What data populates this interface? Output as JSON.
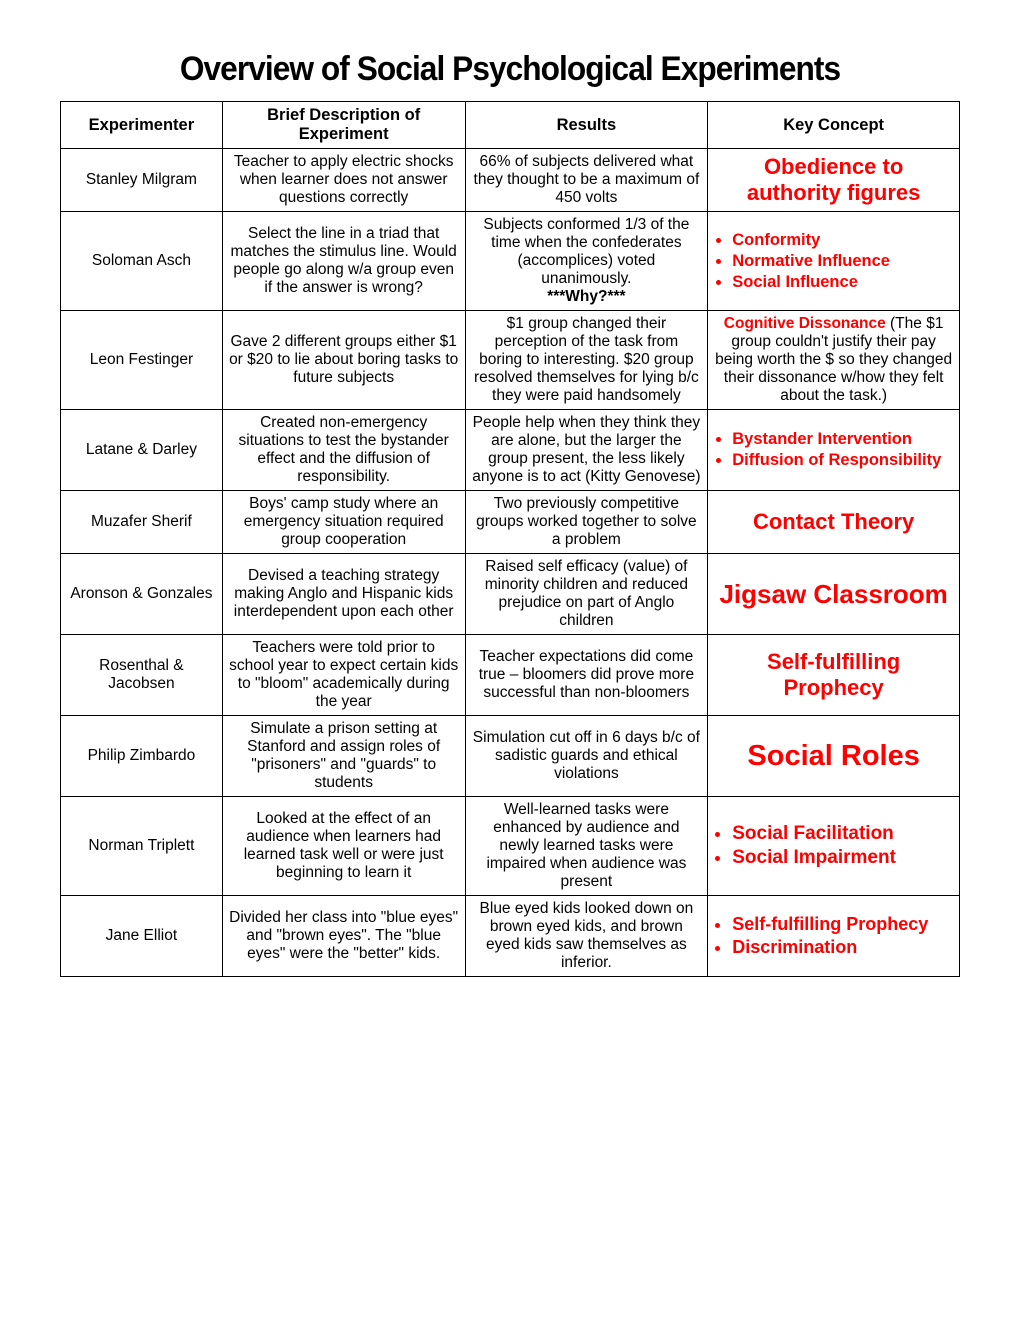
{
  "title": "Overview of Social Psychological Experiments",
  "title_fontsize": 34,
  "columns": [
    "Experimenter",
    "Brief Description of Experiment",
    "Results",
    "Key Concept"
  ],
  "header_fontsize": 16.5,
  "cell_fontsize": 15.5,
  "key_color": "#ff0000",
  "border_color": "#000000",
  "rows": [
    {
      "experimenter": "Stanley Milgram",
      "description": "Teacher to apply electric shocks when learner does not answer questions correctly",
      "results": "66% of subjects delivered what they thought to be a maximum of 450 volts",
      "concept": {
        "type": "block",
        "text": "Obedience to authority figures",
        "fontsize": 22
      }
    },
    {
      "experimenter": "Soloman Asch",
      "description": "Select the line in a triad that matches the stimulus line.  Would people go along w/a group even if the answer is wrong?",
      "results": "Subjects conformed 1/3 of the time when the confederates (accomplices) voted unanimously.",
      "results_note": "***Why?***",
      "concept": {
        "type": "bullets",
        "items": [
          "Conformity",
          "Normative Influence",
          "Social Influence"
        ],
        "fontsize": 16.5
      }
    },
    {
      "experimenter": "Leon Festinger",
      "description": "Gave 2 different groups either $1 or $20 to lie about boring tasks to future subjects",
      "results": "$1 group changed their perception of the task from boring to interesting.  $20 group resolved themselves for lying b/c they were paid handsomely",
      "concept": {
        "type": "dissonance",
        "lead": "Cognitive Dissonance",
        "rest": " (The $1 group couldn't  justify their pay being worth the $ so they changed their dissonance w/how they felt about the task.)",
        "fontsize": 15.5
      }
    },
    {
      "experimenter": "Latane & Darley",
      "description": "Created non-emergency situations to test the bystander effect and the diffusion of responsibility.",
      "results": "People help when they think they are alone, but the larger the group present, the less likely anyone is to act (Kitty Genovese)",
      "concept": {
        "type": "bullets",
        "items": [
          "Bystander Intervention",
          "Diffusion of Responsibility"
        ],
        "fontsize": 16.5
      }
    },
    {
      "experimenter": "Muzafer Sherif",
      "description": "Boys' camp study where an emergency situation required group cooperation",
      "results": "Two previously competitive groups worked together to solve a problem",
      "concept": {
        "type": "block",
        "text": "Contact Theory",
        "fontsize": 22
      }
    },
    {
      "experimenter": "Aronson & Gonzales",
      "description": "Devised a teaching strategy making Anglo and Hispanic kids interdependent upon each other",
      "results": "Raised self efficacy (value) of minority children and reduced prejudice on part of Anglo children",
      "concept": {
        "type": "block",
        "text": "Jigsaw Classroom",
        "fontsize": 26
      }
    },
    {
      "experimenter": "Rosenthal & Jacobsen",
      "description": "Teachers were told prior to school year to expect certain kids to \"bloom\" academically during the year",
      "results": "Teacher expectations did come true – bloomers did prove more successful than non-bloomers",
      "concept": {
        "type": "block",
        "text": "Self-fulfilling Prophecy",
        "fontsize": 22
      }
    },
    {
      "experimenter": "Philip Zimbardo",
      "description": "Simulate a prison setting at Stanford and assign roles of \"prisoners\" and \"guards\" to students",
      "results": "Simulation cut off in 6 days b/c of sadistic guards and ethical violations",
      "concept": {
        "type": "block",
        "text": "Social Roles",
        "fontsize": 29
      }
    },
    {
      "experimenter": "Norman Triplett",
      "description": "Looked at the effect of an audience when learners had learned task well or were just beginning to learn it",
      "results": "Well-learned tasks were enhanced by audience and newly learned tasks were impaired when audience was present",
      "concept": {
        "type": "bullets",
        "items": [
          "Social Facilitation",
          "Social Impairment"
        ],
        "fontsize": 19
      }
    },
    {
      "experimenter": "Jane Elliot",
      "description": "Divided her class into \"blue eyes\" and \"brown eyes\".  The \"blue eyes\" were the \"better\" kids.",
      "results": "Blue eyed kids looked down on brown eyed kids, and brown eyed kids saw themselves as inferior.",
      "concept": {
        "type": "bullets",
        "items": [
          "Self-fulfilling Prophecy",
          "Discrimination"
        ],
        "fontsize": 18
      }
    }
  ]
}
